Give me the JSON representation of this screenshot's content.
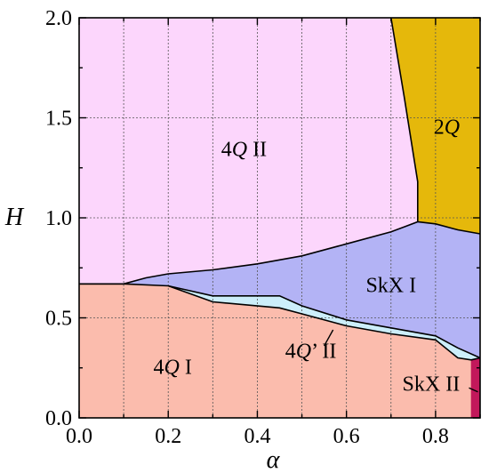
{
  "chart_data": {
    "type": "area",
    "title": "",
    "xlabel": "α",
    "ylabel": "H",
    "xlim": [
      0.0,
      0.9
    ],
    "ylim": [
      0.0,
      2.0
    ],
    "grid": true,
    "x_ticks": [
      "0.0",
      "0.2",
      "0.4",
      "0.6",
      "0.8"
    ],
    "x_tick_values": [
      0.0,
      0.2,
      0.4,
      0.6,
      0.8
    ],
    "y_ticks": [
      "0.0",
      "0.5",
      "1.0",
      "1.5",
      "2.0"
    ],
    "y_tick_values": [
      0.0,
      0.5,
      1.0,
      1.5,
      2.0
    ],
    "regions": [
      {
        "id": "4q-ii",
        "label": "4Q II",
        "color": "#fcd6fc",
        "label_pos": [
          0.37,
          1.31
        ],
        "polygon": [
          [
            0,
            2
          ],
          [
            0.7,
            2
          ],
          [
            0.73,
            1.6
          ],
          [
            0.76,
            1.18
          ],
          [
            0.76,
            0.98
          ],
          [
            0.7,
            0.93
          ],
          [
            0.6,
            0.87
          ],
          [
            0.5,
            0.81
          ],
          [
            0.4,
            0.77
          ],
          [
            0.3,
            0.74
          ],
          [
            0.2,
            0.72
          ],
          [
            0.15,
            0.7
          ],
          [
            0.1,
            0.67
          ],
          [
            0,
            0.67
          ]
        ]
      },
      {
        "id": "2q",
        "label": "2Q",
        "color": "#e5b80b",
        "label_pos": [
          0.825,
          1.42
        ],
        "polygon": [
          [
            0.7,
            2
          ],
          [
            0.9,
            2
          ],
          [
            0.9,
            0.92
          ],
          [
            0.85,
            0.94
          ],
          [
            0.8,
            0.97
          ],
          [
            0.76,
            0.98
          ],
          [
            0.76,
            1.18
          ],
          [
            0.73,
            1.6
          ]
        ]
      },
      {
        "id": "skx-i",
        "label": "SkX I",
        "color": "#b3b3f5",
        "label_pos": [
          0.7,
          0.63
        ],
        "polygon": [
          [
            0.1,
            0.67
          ],
          [
            0.15,
            0.7
          ],
          [
            0.2,
            0.72
          ],
          [
            0.3,
            0.74
          ],
          [
            0.4,
            0.77
          ],
          [
            0.5,
            0.81
          ],
          [
            0.6,
            0.87
          ],
          [
            0.7,
            0.93
          ],
          [
            0.76,
            0.98
          ],
          [
            0.8,
            0.97
          ],
          [
            0.85,
            0.94
          ],
          [
            0.9,
            0.92
          ],
          [
            0.9,
            0.3
          ],
          [
            0.85,
            0.35
          ],
          [
            0.8,
            0.41
          ],
          [
            0.7,
            0.45
          ],
          [
            0.6,
            0.49
          ],
          [
            0.5,
            0.56
          ],
          [
            0.45,
            0.61
          ],
          [
            0.3,
            0.61
          ],
          [
            0.2,
            0.66
          ],
          [
            0.1,
            0.67
          ]
        ]
      },
      {
        "id": "4q-prime-ii",
        "label": "4Q’ II",
        "color": "#cceefa",
        "label_pos": [
          0.52,
          0.3
        ],
        "polygon": [
          [
            0.2,
            0.66
          ],
          [
            0.3,
            0.61
          ],
          [
            0.45,
            0.61
          ],
          [
            0.5,
            0.56
          ],
          [
            0.6,
            0.49
          ],
          [
            0.7,
            0.45
          ],
          [
            0.8,
            0.41
          ],
          [
            0.85,
            0.35
          ],
          [
            0.9,
            0.3
          ],
          [
            0.9,
            0.29
          ],
          [
            0.85,
            0.3
          ],
          [
            0.8,
            0.39
          ],
          [
            0.7,
            0.42
          ],
          [
            0.6,
            0.46
          ],
          [
            0.5,
            0.52
          ],
          [
            0.45,
            0.55
          ],
          [
            0.3,
            0.58
          ],
          [
            0.2,
            0.66
          ]
        ]
      },
      {
        "id": "4q-i",
        "label": "4Q I",
        "color": "#fbbcad",
        "label_pos": [
          0.21,
          0.22
        ],
        "polygon": [
          [
            0,
            0.67
          ],
          [
            0.1,
            0.67
          ],
          [
            0.2,
            0.66
          ],
          [
            0.3,
            0.58
          ],
          [
            0.45,
            0.55
          ],
          [
            0.5,
            0.52
          ],
          [
            0.6,
            0.46
          ],
          [
            0.7,
            0.42
          ],
          [
            0.8,
            0.39
          ],
          [
            0.85,
            0.3
          ],
          [
            0.88,
            0.29
          ],
          [
            0.88,
            0
          ],
          [
            0,
            0
          ]
        ]
      },
      {
        "id": "skx-ii",
        "label": "SkX II",
        "color": "#c2185b",
        "label_pos": [
          0.79,
          0.135
        ],
        "polygon": [
          [
            0.88,
            0
          ],
          [
            0.9,
            0
          ],
          [
            0.9,
            0.3
          ],
          [
            0.88,
            0.29
          ]
        ]
      }
    ],
    "boundaries": [
      [
        [
          0.7,
          2
        ],
        [
          0.73,
          1.6
        ],
        [
          0.76,
          1.18
        ],
        [
          0.76,
          0.98
        ]
      ],
      [
        [
          0,
          0.67
        ],
        [
          0.1,
          0.67
        ],
        [
          0.15,
          0.7
        ],
        [
          0.2,
          0.72
        ],
        [
          0.3,
          0.74
        ],
        [
          0.4,
          0.77
        ],
        [
          0.5,
          0.81
        ],
        [
          0.6,
          0.87
        ],
        [
          0.7,
          0.93
        ],
        [
          0.76,
          0.98
        ],
        [
          0.8,
          0.97
        ],
        [
          0.85,
          0.94
        ],
        [
          0.9,
          0.92
        ]
      ],
      [
        [
          0,
          0.67
        ],
        [
          0.1,
          0.67
        ],
        [
          0.2,
          0.66
        ],
        [
          0.3,
          0.61
        ],
        [
          0.45,
          0.61
        ],
        [
          0.5,
          0.56
        ],
        [
          0.6,
          0.49
        ],
        [
          0.7,
          0.45
        ],
        [
          0.8,
          0.41
        ],
        [
          0.85,
          0.35
        ],
        [
          0.9,
          0.3
        ]
      ],
      [
        [
          0.2,
          0.66
        ],
        [
          0.3,
          0.58
        ],
        [
          0.45,
          0.55
        ],
        [
          0.5,
          0.52
        ],
        [
          0.6,
          0.46
        ],
        [
          0.7,
          0.42
        ],
        [
          0.8,
          0.39
        ],
        [
          0.85,
          0.3
        ],
        [
          0.88,
          0.29
        ]
      ],
      [
        [
          0.88,
          0.29
        ],
        [
          0.9,
          0.3
        ]
      ]
    ],
    "leaders": [
      {
        "from": [
          0.57,
          0.44
        ],
        "to": [
          0.55,
          0.36
        ]
      },
      {
        "from": [
          0.875,
          0.15
        ],
        "to": [
          0.895,
          0.13
        ]
      }
    ]
  }
}
